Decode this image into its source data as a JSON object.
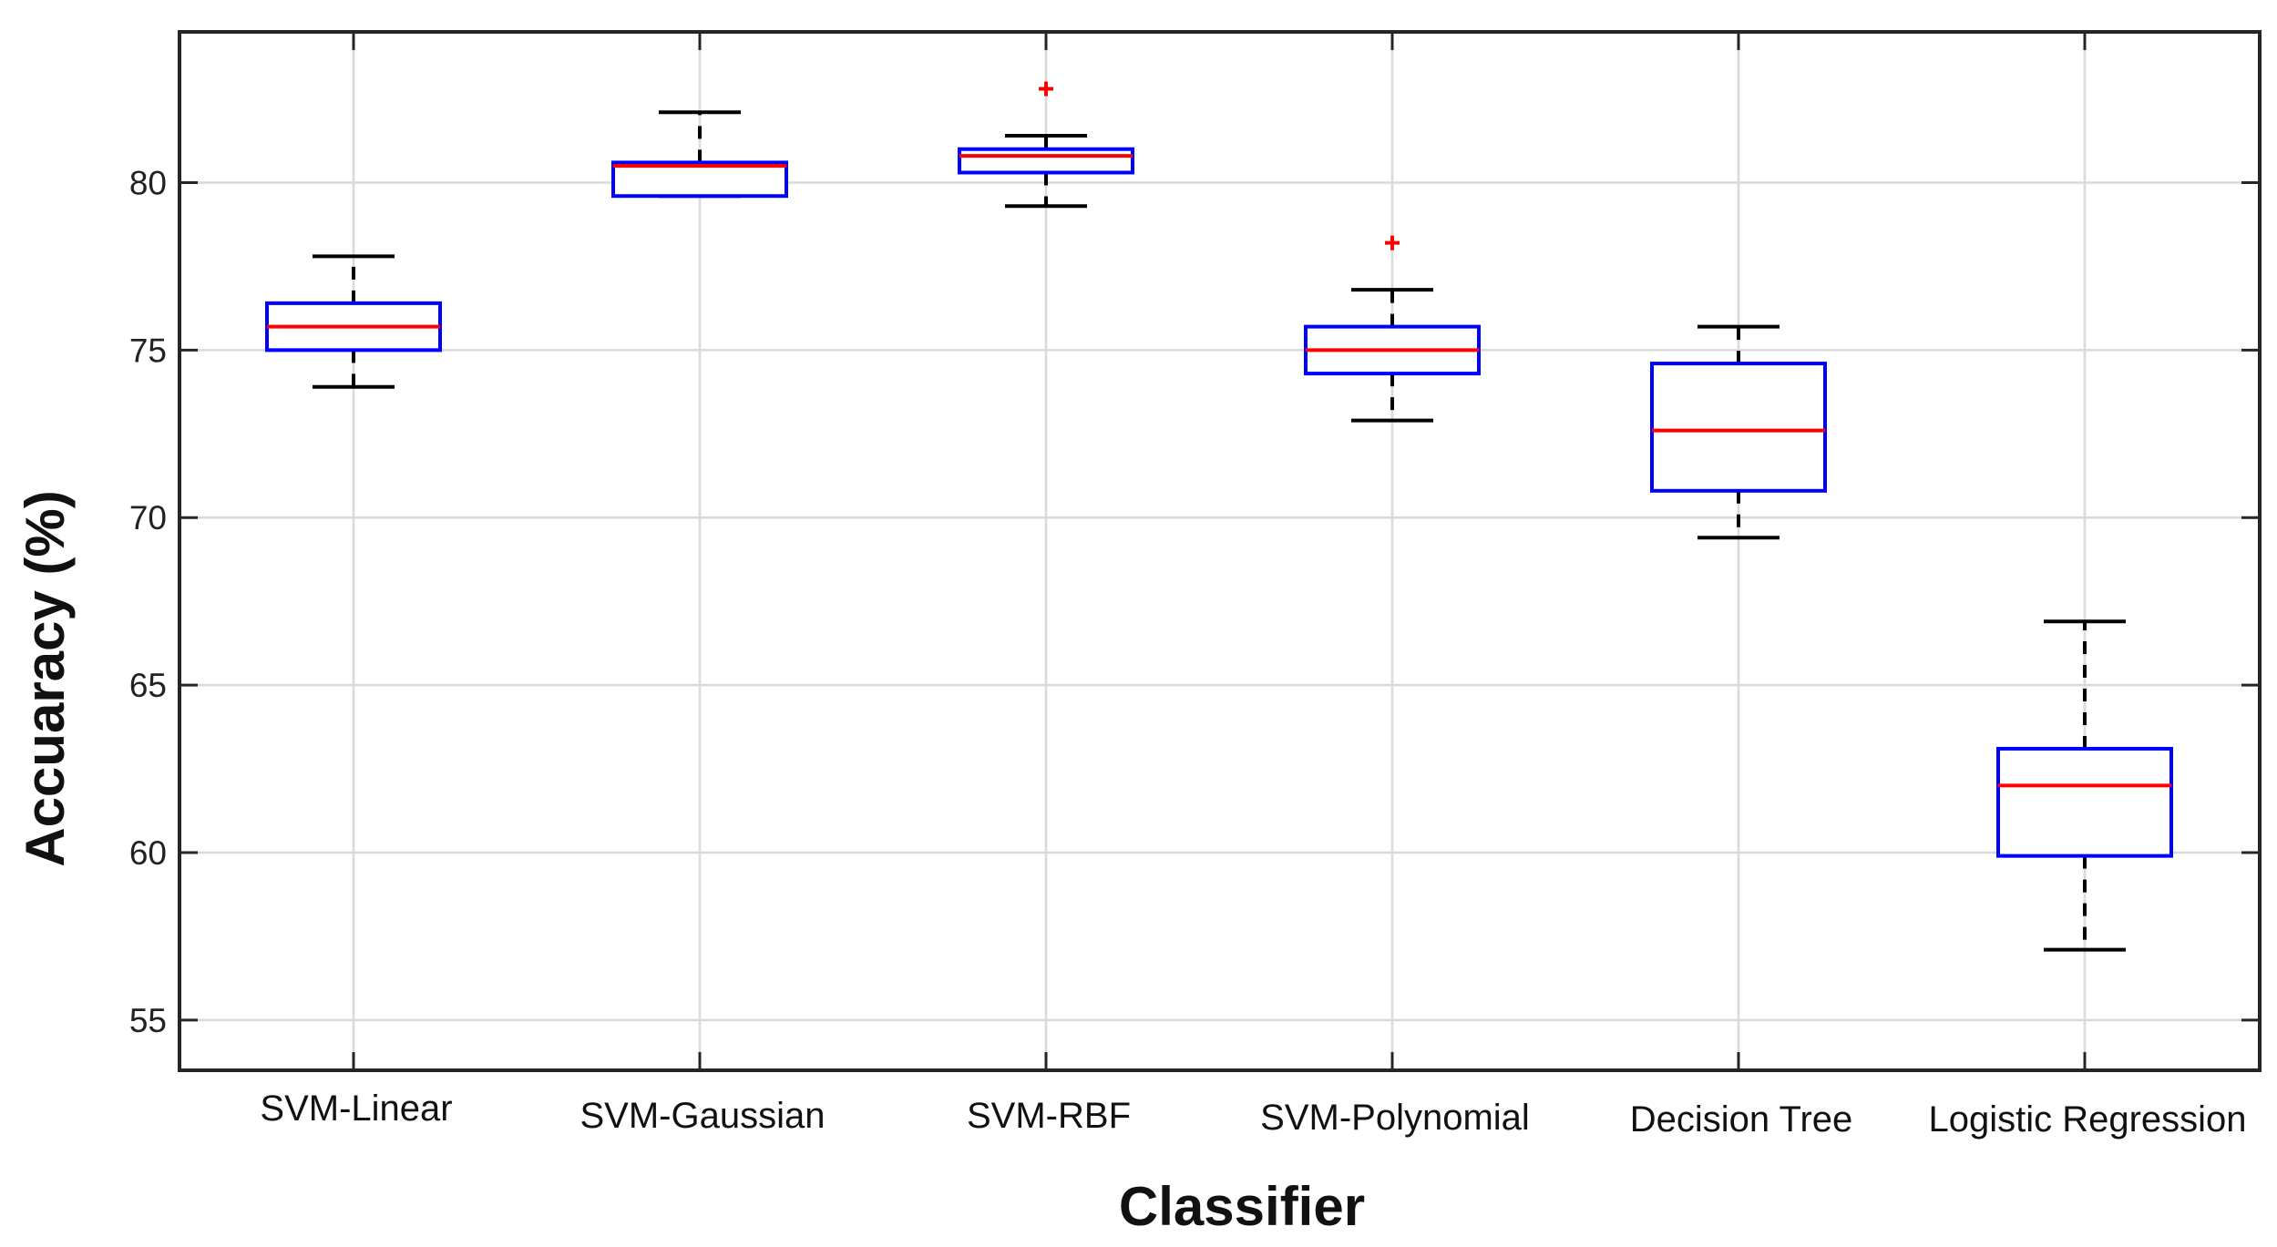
{
  "chart_data": {
    "type": "box",
    "title": "",
    "xlabel": "Classifier",
    "ylabel": "Accuaracy (%)",
    "ylim": [
      53.5,
      84.5
    ],
    "yticks": [
      55,
      60,
      65,
      70,
      75,
      80
    ],
    "grid": true,
    "categories": [
      "SVM-Linear",
      "SVM-Gaussian",
      "SVM-RBF",
      "SVM-Polynomial",
      "Decision Tree",
      "Logistic Regression"
    ],
    "boxes": [
      {
        "name": "SVM-Linear",
        "whisker_low": 73.9,
        "q1": 75.0,
        "median": 75.7,
        "q3": 76.4,
        "whisker_high": 77.8,
        "outliers": []
      },
      {
        "name": "SVM-Gaussian",
        "whisker_low": 79.6,
        "q1": 79.6,
        "median": 80.5,
        "q3": 80.6,
        "whisker_high": 82.1,
        "outliers": []
      },
      {
        "name": "SVM-RBF",
        "whisker_low": 79.3,
        "q1": 80.3,
        "median": 80.8,
        "q3": 81.0,
        "whisker_high": 81.4,
        "outliers": [
          82.8
        ]
      },
      {
        "name": "SVM-Polynomial",
        "whisker_low": 72.9,
        "q1": 74.3,
        "median": 75.0,
        "q3": 75.7,
        "whisker_high": 76.8,
        "outliers": [
          78.2
        ]
      },
      {
        "name": "Decision Tree",
        "whisker_low": 69.4,
        "q1": 70.8,
        "median": 72.6,
        "q3": 74.6,
        "whisker_high": 75.7,
        "outliers": []
      },
      {
        "name": "Logistic Regression",
        "whisker_low": 57.1,
        "q1": 59.9,
        "median": 62.0,
        "q3": 63.1,
        "whisker_high": 66.9,
        "outliers": []
      }
    ],
    "colors": {
      "box": "#0000ff",
      "median": "#ff0000",
      "whisker": "#000000",
      "outlier": "#ff0000",
      "grid": "#d9d9d9",
      "axis": "#262626"
    }
  }
}
